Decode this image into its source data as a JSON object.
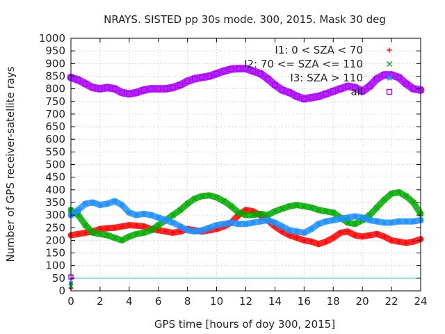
{
  "chart_data": {
    "type": "scatter",
    "title": "NRAYS. SISTED pp 30s mode. 300, 2015. Mask 30 deg",
    "xlabel": "GPS time [hours of doy 300, 2015]",
    "ylabel": "Number of GPS receiver-satellite rays",
    "xlim": [
      0,
      24
    ],
    "ylim": [
      0,
      1000
    ],
    "xticks": [
      0,
      2,
      4,
      6,
      8,
      10,
      12,
      14,
      16,
      18,
      20,
      22,
      24
    ],
    "yticks": [
      0,
      50,
      100,
      150,
      200,
      250,
      300,
      350,
      400,
      450,
      500,
      550,
      600,
      650,
      700,
      750,
      800,
      850,
      900,
      950,
      1000
    ],
    "legend_position": "top-right",
    "series": [
      {
        "name": "I1: 0 < SZA < 70",
        "color": "#ff0000",
        "marker": "plus",
        "x": [
          0,
          0.5,
          1,
          1.5,
          2,
          2.5,
          3,
          3.5,
          4,
          4.5,
          5,
          5.5,
          6,
          6.5,
          7,
          7.5,
          8,
          8.5,
          9,
          9.5,
          10,
          10.5,
          11,
          11.5,
          12,
          12.5,
          13,
          13.5,
          14,
          14.5,
          15,
          15.5,
          16,
          16.5,
          17,
          17.5,
          18,
          18.5,
          19,
          19.5,
          20,
          20.5,
          21,
          21.5,
          22,
          22.5,
          23,
          23.5,
          24
        ],
        "y": [
          220,
          225,
          230,
          235,
          245,
          248,
          250,
          255,
          260,
          258,
          255,
          245,
          240,
          235,
          230,
          235,
          245,
          240,
          235,
          240,
          245,
          255,
          270,
          300,
          320,
          315,
          300,
          280,
          255,
          235,
          220,
          210,
          200,
          195,
          185,
          195,
          210,
          230,
          235,
          220,
          215,
          220,
          225,
          215,
          200,
          195,
          190,
          195,
          205
        ],
        "extra_points": [
          [
            0,
            10
          ]
        ]
      },
      {
        "name": "I2: 70 <= SZA <= 110",
        "color": "#00aa00",
        "marker": "cross",
        "x": [
          0,
          0.5,
          1,
          1.5,
          2,
          2.5,
          3,
          3.5,
          4,
          4.5,
          5,
          5.5,
          6,
          6.5,
          7,
          7.5,
          8,
          8.5,
          9,
          9.5,
          10,
          10.5,
          11,
          11.5,
          12,
          12.5,
          13,
          13.5,
          14,
          14.5,
          15,
          15.5,
          16,
          16.5,
          17,
          17.5,
          18,
          18.5,
          19,
          19.5,
          20,
          20.5,
          21,
          21.5,
          22,
          22.5,
          23,
          23.5,
          24
        ],
        "y": [
          320,
          300,
          260,
          230,
          225,
          220,
          210,
          200,
          215,
          225,
          230,
          240,
          260,
          280,
          300,
          320,
          345,
          365,
          375,
          378,
          370,
          355,
          335,
          310,
          300,
          300,
          305,
          300,
          315,
          325,
          335,
          340,
          335,
          330,
          320,
          315,
          310,
          290,
          270,
          265,
          280,
          300,
          330,
          360,
          385,
          390,
          375,
          350,
          305
        ],
        "extra_points": [
          [
            0,
            20
          ]
        ]
      },
      {
        "name": "I3: SZA > 110",
        "color": "#1e90ff",
        "marker": "star",
        "x": [
          0,
          0.5,
          1,
          1.5,
          2,
          2.5,
          3,
          3.5,
          4,
          4.5,
          5,
          5.5,
          6,
          6.5,
          7,
          7.5,
          8,
          8.5,
          9,
          9.5,
          10,
          10.5,
          11,
          11.5,
          12,
          12.5,
          13,
          13.5,
          14,
          14.5,
          15,
          15.5,
          16,
          16.5,
          17,
          17.5,
          18,
          18.5,
          19,
          19.5,
          20,
          20.5,
          21,
          21.5,
          22,
          22.5,
          23,
          23.5,
          24
        ],
        "y": [
          300,
          320,
          345,
          350,
          340,
          345,
          355,
          340,
          310,
          300,
          305,
          300,
          290,
          280,
          270,
          255,
          240,
          235,
          240,
          250,
          260,
          265,
          270,
          265,
          265,
          270,
          275,
          280,
          270,
          255,
          240,
          235,
          230,
          245,
          265,
          275,
          280,
          285,
          290,
          295,
          290,
          280,
          275,
          270,
          270,
          275,
          275,
          275,
          280
        ],
        "extra_points": [
          [
            0,
            30
          ]
        ]
      },
      {
        "name": "all",
        "color": "#aa00ff",
        "marker": "square",
        "x": [
          0,
          0.5,
          1,
          1.5,
          2,
          2.5,
          3,
          3.5,
          4,
          4.5,
          5,
          5.5,
          6,
          6.5,
          7,
          7.5,
          8,
          8.5,
          9,
          9.5,
          10,
          10.5,
          11,
          11.5,
          12,
          12.5,
          13,
          13.5,
          14,
          14.5,
          15,
          15.5,
          16,
          16.5,
          17,
          17.5,
          18,
          18.5,
          19,
          19.5,
          20,
          20.5,
          21,
          21.5,
          22,
          22.5,
          23,
          23.5,
          24
        ],
        "y": [
          845,
          835,
          820,
          805,
          800,
          805,
          800,
          785,
          780,
          785,
          795,
          800,
          800,
          800,
          805,
          815,
          830,
          840,
          845,
          850,
          860,
          870,
          878,
          880,
          880,
          870,
          860,
          840,
          815,
          795,
          785,
          770,
          760,
          765,
          770,
          780,
          790,
          800,
          810,
          805,
          790,
          810,
          840,
          855,
          855,
          845,
          820,
          800,
          795
        ],
        "extra_points": [
          [
            0,
            55
          ]
        ]
      }
    ],
    "hlines": [
      {
        "y": 50,
        "color": "#00cccc"
      }
    ]
  }
}
